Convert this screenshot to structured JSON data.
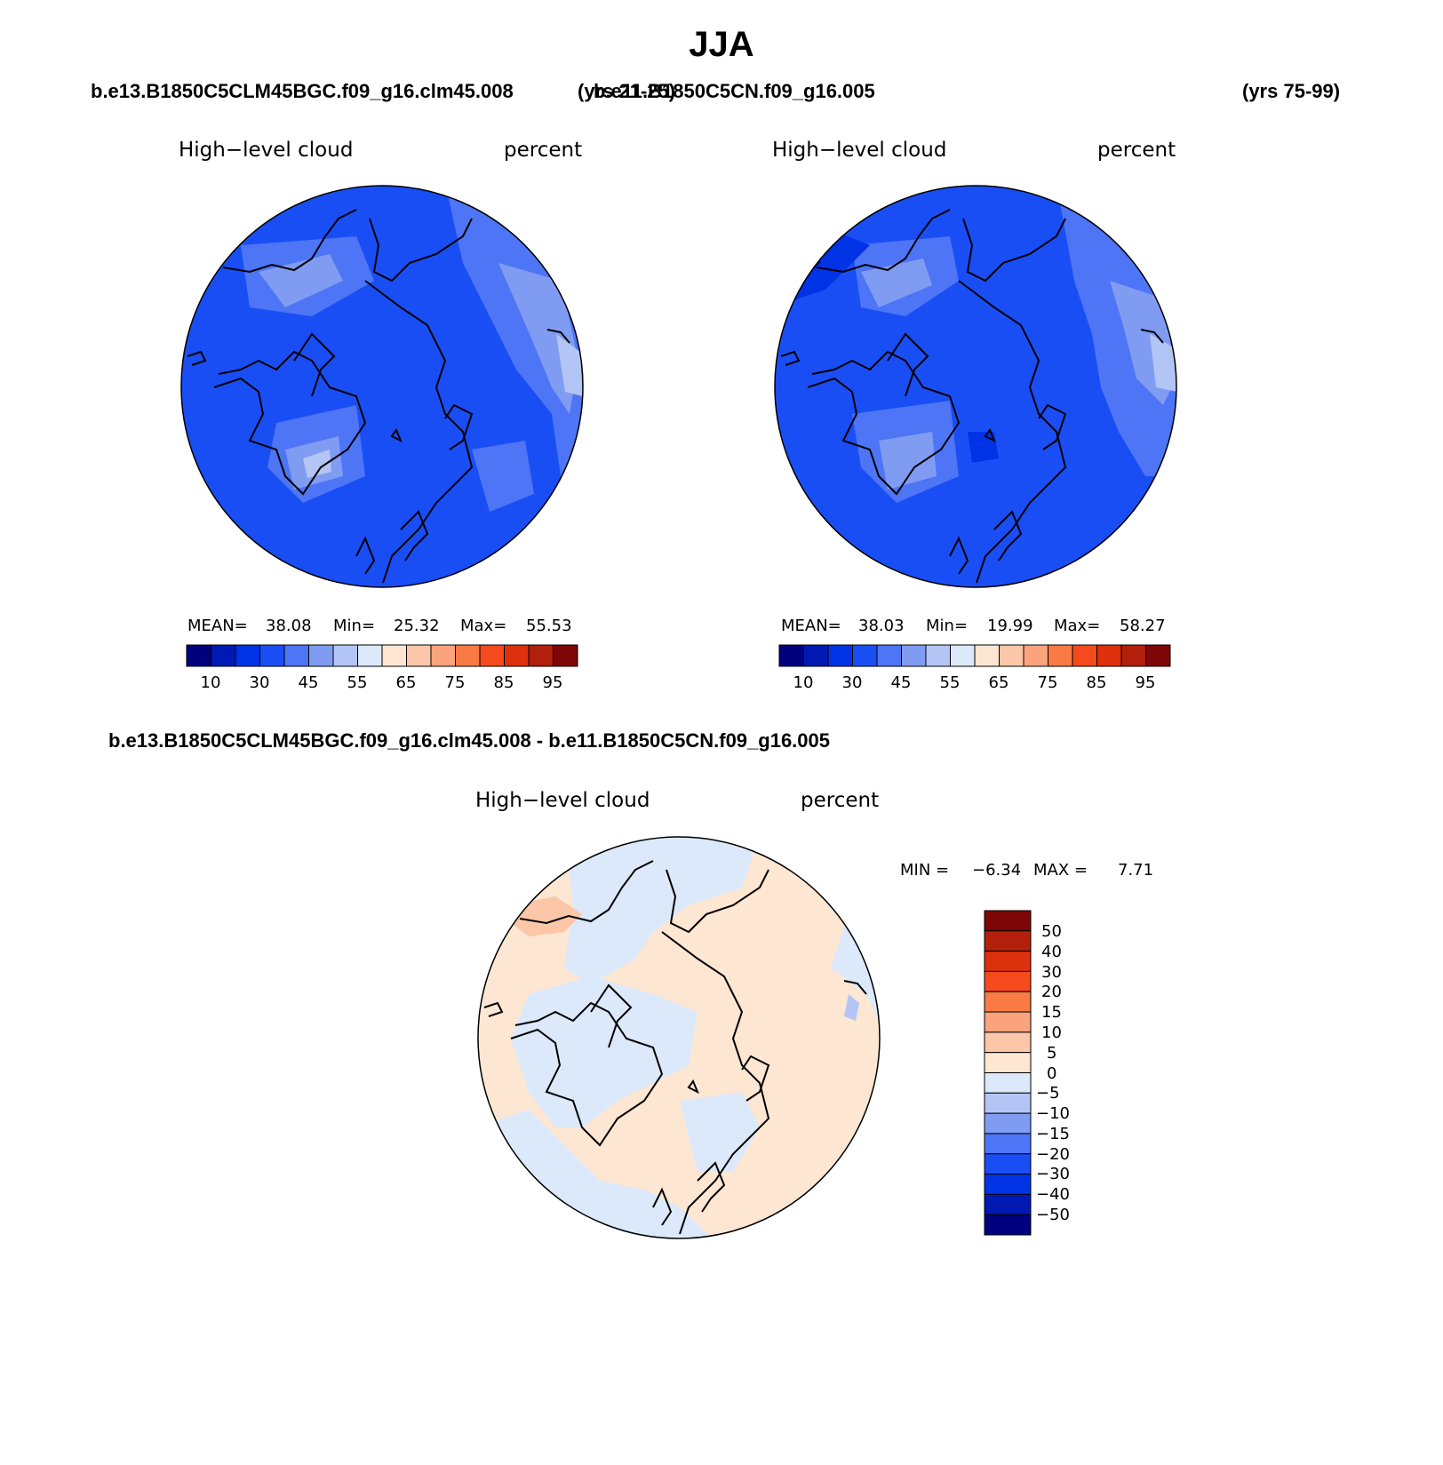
{
  "title": "JJA",
  "panels": [
    {
      "case_name": "b.e13.B1850C5CLM45BGC.f09_g16.clm45.008",
      "years": "(yrs 21-25)",
      "variable": "High−level cloud",
      "units": "percent",
      "stats": {
        "mean_label": "MEAN=",
        "mean": "38.08",
        "min_label": "Min=",
        "min": "25.32",
        "max_label": "Max=",
        "max": "55.53"
      }
    },
    {
      "case_name": "b.e11.B1850C5CN.f09_g16.005",
      "years": "(yrs 75-99)",
      "variable": "High−level cloud",
      "units": "percent",
      "stats": {
        "mean_label": "MEAN=",
        "mean": "38.03",
        "min_label": "Min=",
        "min": "19.99",
        "max_label": "Max=",
        "max": "58.27"
      }
    }
  ],
  "diff": {
    "title": "b.e13.B1850C5CLM45BGC.f09_g16.clm45.008 - b.e11.B1850C5CN.f09_g16.005",
    "variable": "High−level cloud",
    "units": "percent",
    "minmax": {
      "min_label": "MIN =",
      "min": "−6.34",
      "max_label": "MAX =",
      "max": "7.71"
    }
  },
  "colorbar": {
    "colors": [
      "#00007f",
      "#0019b2",
      "#0033e6",
      "#1a4ef5",
      "#4d75f5",
      "#809cf2",
      "#b3c5f4",
      "#dbe9fb",
      "#fde6d2",
      "#fcc6a8",
      "#fba37c",
      "#fa7a46",
      "#f44a1e",
      "#dd300c",
      "#b2200b",
      "#7e0606"
    ],
    "ticks": [
      "10",
      "30",
      "45",
      "55",
      "65",
      "75",
      "85",
      "95"
    ]
  },
  "diff_colorbar": {
    "colors": [
      "#7e0606",
      "#b2200b",
      "#dd300c",
      "#f44a1e",
      "#fa7a46",
      "#fba37c",
      "#fcc6a8",
      "#fde6d2",
      "#dbe9fb",
      "#b3c5f4",
      "#809cf2",
      "#4d75f5",
      "#1a4ef5",
      "#0033e6",
      "#0019b2",
      "#00007f"
    ],
    "ticks": [
      "50",
      "40",
      "30",
      "20",
      "15",
      "10",
      "5",
      "0",
      "−5",
      "−10",
      "−15",
      "−20",
      "−30",
      "−40",
      "−50"
    ]
  },
  "chart_data": [
    {
      "type": "heatmap",
      "projection": "north polar stereographic",
      "title": "High−level cloud",
      "units": "percent",
      "case": "b.e13.B1850C5CLM45BGC.f09_g16.clm45.008",
      "years": "(yrs 21-25)",
      "mean": 38.08,
      "min": 25.32,
      "max": 55.53,
      "contour_levels": [
        10,
        15,
        20,
        25,
        30,
        35,
        40,
        45,
        50,
        55,
        60,
        65,
        70,
        75,
        80,
        85,
        90,
        95
      ]
    },
    {
      "type": "heatmap",
      "projection": "north polar stereographic",
      "title": "High−level cloud",
      "units": "percent",
      "case": "b.e11.B1850C5CN.f09_g16.005",
      "years": "(yrs 75-99)",
      "mean": 38.03,
      "min": 19.99,
      "max": 58.27,
      "contour_levels": [
        10,
        15,
        20,
        25,
        30,
        35,
        40,
        45,
        50,
        55,
        60,
        65,
        70,
        75,
        80,
        85,
        90,
        95
      ]
    },
    {
      "type": "heatmap",
      "projection": "north polar stereographic",
      "title": "High−level cloud",
      "units": "percent",
      "case": "b.e13.B1850C5CLM45BGC.f09_g16.clm45.008 - b.e11.B1850C5CN.f09_g16.005",
      "min": -6.34,
      "max": 7.71,
      "contour_levels": [
        -50,
        -40,
        -30,
        -20,
        -15,
        -10,
        -5,
        0,
        5,
        10,
        15,
        20,
        30,
        40,
        50
      ]
    }
  ]
}
